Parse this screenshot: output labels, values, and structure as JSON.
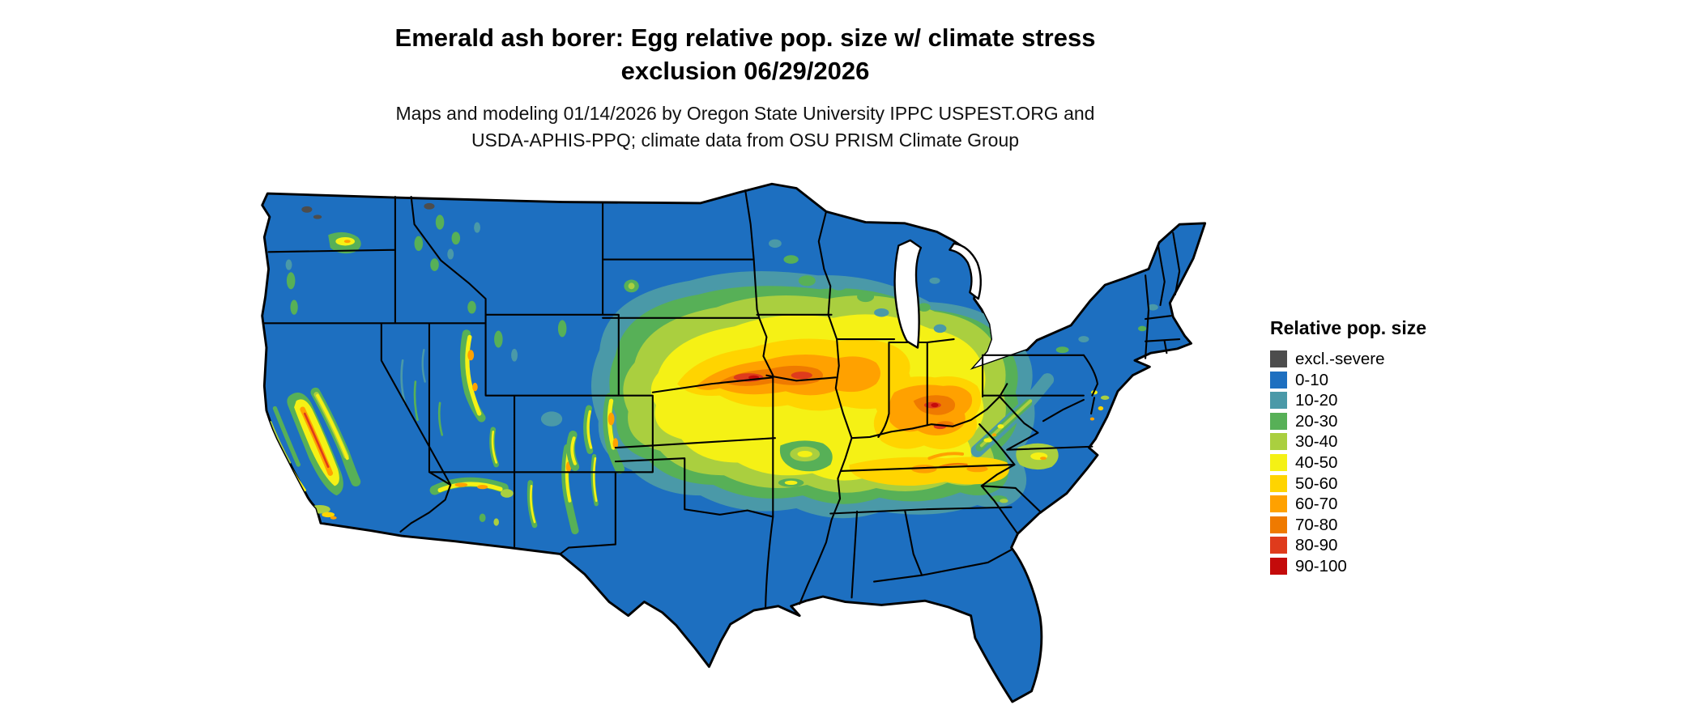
{
  "title": {
    "line1": "Emerald ash borer: Egg relative pop. size w/ climate stress",
    "line2": "exclusion 06/29/2026"
  },
  "subtitle": {
    "line1": "Maps and modeling 01/14/2026 by Oregon State University IPPC USPEST.ORG and",
    "line2": "USDA-APHIS-PPQ; climate data from OSU PRISM Climate Group"
  },
  "legend": {
    "title": "Relative pop. size",
    "items": [
      {
        "label": "excl.-severe",
        "color": "#4d4d4d"
      },
      {
        "label": "0-10",
        "color": "#1d6fc0"
      },
      {
        "label": "10-20",
        "color": "#4a99a8"
      },
      {
        "label": "20-30",
        "color": "#57b057"
      },
      {
        "label": "30-40",
        "color": "#aacf3f"
      },
      {
        "label": "40-50",
        "color": "#f5f115"
      },
      {
        "label": "50-60",
        "color": "#ffd400"
      },
      {
        "label": "60-70",
        "color": "#ffa100"
      },
      {
        "label": "70-80",
        "color": "#ef7a00"
      },
      {
        "label": "80-90",
        "color": "#df3b1c"
      },
      {
        "label": "90-100",
        "color": "#c40b0b"
      }
    ]
  },
  "map": {
    "region": "Contiguous United States",
    "base_fill_class": "0-10",
    "border_color": "#000000",
    "water_color": "#ffffff"
  }
}
